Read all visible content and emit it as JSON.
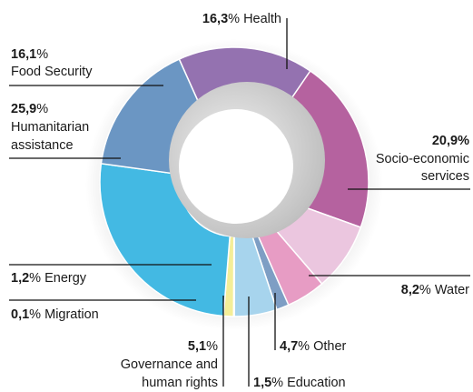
{
  "chart_data": {
    "type": "pie",
    "variant": "donut",
    "title": "",
    "unit": "%",
    "slices": [
      {
        "label": "Health",
        "value": 16.3,
        "value_text": "16,3",
        "color": "#9472b0"
      },
      {
        "label": "Socio-economic services",
        "value": 20.9,
        "value_text": "20,9",
        "color": "#b5629f"
      },
      {
        "label": "Water",
        "value": 8.2,
        "value_text": "8,2",
        "color": "#ebc6df"
      },
      {
        "label": "Other",
        "value": 4.7,
        "value_text": "4,7",
        "color": "#e79cc4"
      },
      {
        "label": "Education",
        "value": 1.5,
        "value_text": "1,5",
        "color": "#7e9ec4"
      },
      {
        "label": "Governance and human rights",
        "value": 5.1,
        "value_text": "5,1",
        "color": "#a7d4ed"
      },
      {
        "label": "Migration",
        "value": 0.1,
        "value_text": "0,1",
        "color": "#dcdcdc"
      },
      {
        "label": "Energy",
        "value": 1.2,
        "value_text": "1,2",
        "color": "#f4ee98"
      },
      {
        "label": "Humanitarian assistance",
        "value": 25.9,
        "value_text": "25,9",
        "color": "#43b9e3"
      },
      {
        "label": "Food Security",
        "value": 16.1,
        "value_text": "16,1",
        "color": "#6b96c3"
      }
    ],
    "label_text": {
      "health": "Health",
      "socio_line1": "Socio-economic",
      "socio_line2": "services",
      "water": "Water",
      "other": "Other",
      "education": "Education",
      "gov_line1": "Governance and",
      "gov_line2": "human rights",
      "migration": "Migration",
      "energy": "Energy",
      "hum_line1": "Humanitarian",
      "hum_line2": "assistance",
      "food": "Food Security",
      "percent_sign": "%"
    }
  }
}
